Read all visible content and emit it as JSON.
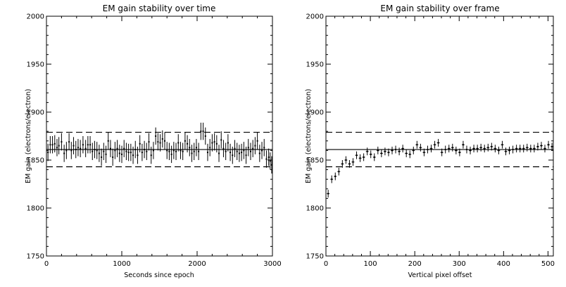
{
  "chart_data": [
    {
      "type": "scatter",
      "title": "EM gain stability over time",
      "xlabel": "Seconds since epoch",
      "ylabel": "EM gain (electrons/electron)",
      "xlim": [
        0,
        3000
      ],
      "ylim": [
        1750,
        2000
      ],
      "x_ticks": [
        "0",
        "1000",
        "2000",
        "3000"
      ],
      "y_ticks": [
        "1750",
        "1800",
        "1850",
        "1900",
        "1950",
        "2000"
      ],
      "reference_lines": {
        "mean": 1861,
        "upper": 1879,
        "lower": 1843
      },
      "series": [
        {
          "marker": "error bars",
          "x": [
            20,
            50,
            80,
            110,
            140,
            165,
            200,
            235,
            265,
            300,
            330,
            360,
            390,
            420,
            450,
            485,
            520,
            550,
            580,
            610,
            640,
            670,
            700,
            730,
            760,
            790,
            820,
            850,
            880,
            910,
            940,
            970,
            1000,
            1030,
            1060,
            1090,
            1120,
            1150,
            1180,
            1210,
            1240,
            1270,
            1300,
            1330,
            1360,
            1390,
            1420,
            1450,
            1480,
            1510,
            1540,
            1570,
            1600,
            1630,
            1660,
            1690,
            1720,
            1750,
            1780,
            1810,
            1840,
            1870,
            1900,
            1930,
            1960,
            1990,
            2020,
            2050,
            2080,
            2110,
            2140,
            2170,
            2200,
            2230,
            2260,
            2290,
            2320,
            2350,
            2380,
            2410,
            2440,
            2470,
            2500,
            2530,
            2560,
            2590,
            2620,
            2650,
            2680,
            2710,
            2740,
            2770,
            2800,
            2830,
            2860,
            2890,
            2920,
            2950,
            2970,
            2990
          ],
          "y": [
            1858,
            1866,
            1866,
            1867,
            1863,
            1865,
            1869,
            1857,
            1860,
            1869,
            1860,
            1865,
            1861,
            1863,
            1862,
            1866,
            1862,
            1866,
            1866,
            1859,
            1861,
            1860,
            1857,
            1853,
            1859,
            1856,
            1870,
            1862,
            1853,
            1860,
            1862,
            1857,
            1856,
            1862,
            1859,
            1858,
            1858,
            1855,
            1861,
            1855,
            1867,
            1858,
            1861,
            1859,
            1869,
            1855,
            1860,
            1875,
            1869,
            1868,
            1872,
            1870,
            1860,
            1859,
            1856,
            1860,
            1859,
            1868,
            1860,
            1859,
            1870,
            1867,
            1863,
            1857,
            1859,
            1863,
            1859,
            1880,
            1880,
            1875,
            1858,
            1863,
            1868,
            1869,
            1867,
            1857,
            1871,
            1862,
            1859,
            1868,
            1858,
            1855,
            1862,
            1859,
            1857,
            1858,
            1860,
            1855,
            1863,
            1859,
            1862,
            1865,
            1870,
            1857,
            1860,
            1863,
            1851,
            1853,
            1849,
            1845
          ],
          "yerr": [
            9,
            9,
            9,
            9,
            9,
            9,
            9,
            9,
            9,
            9,
            9,
            9,
            9,
            9,
            9,
            9,
            9,
            9,
            9,
            9,
            9,
            9,
            9,
            9,
            9,
            9,
            9,
            9,
            9,
            9,
            9,
            9,
            9,
            9,
            9,
            9,
            9,
            9,
            9,
            9,
            9,
            9,
            9,
            9,
            9,
            9,
            9,
            9,
            9,
            9,
            9,
            9,
            9,
            9,
            9,
            9,
            9,
            9,
            9,
            9,
            9,
            9,
            9,
            9,
            9,
            9,
            9,
            9,
            9,
            9,
            9,
            9,
            9,
            9,
            9,
            9,
            9,
            9,
            9,
            9,
            9,
            9,
            9,
            9,
            9,
            9,
            9,
            9,
            9,
            9,
            9,
            9,
            9,
            9,
            9,
            9,
            9,
            9,
            9,
            9
          ],
          "xerr": 2
        }
      ]
    },
    {
      "type": "scatter",
      "title": "EM gain stability over frame",
      "xlabel": "Vertical pixel offset",
      "ylabel": "EM gain (electrons/electron)",
      "xlim": [
        0,
        512
      ],
      "ylim": [
        1750,
        2000
      ],
      "x_ticks": [
        "0",
        "100",
        "200",
        "300",
        "400",
        "500"
      ],
      "y_ticks": [
        "1750",
        "1800",
        "1850",
        "1900",
        "1950",
        "2000"
      ],
      "reference_lines": {
        "mean": 1861,
        "upper": 1879,
        "lower": 1843
      },
      "series": [
        {
          "marker": "error bars",
          "x": [
            5,
            13,
            21,
            29,
            37,
            45,
            53,
            61,
            69,
            77,
            85,
            93,
            101,
            109,
            117,
            125,
            133,
            141,
            149,
            157,
            165,
            173,
            181,
            189,
            197,
            205,
            213,
            221,
            229,
            237,
            245,
            253,
            261,
            269,
            277,
            285,
            293,
            301,
            309,
            317,
            325,
            333,
            341,
            349,
            357,
            365,
            373,
            381,
            389,
            397,
            405,
            413,
            421,
            429,
            437,
            445,
            453,
            461,
            469,
            477,
            485,
            493,
            501,
            509
          ],
          "y": [
            1815,
            1830,
            1833,
            1838,
            1846,
            1850,
            1846,
            1848,
            1855,
            1852,
            1853,
            1859,
            1856,
            1853,
            1860,
            1857,
            1859,
            1858,
            1860,
            1861,
            1859,
            1862,
            1857,
            1856,
            1860,
            1866,
            1863,
            1858,
            1861,
            1862,
            1866,
            1868,
            1858,
            1861,
            1862,
            1863,
            1860,
            1858,
            1866,
            1861,
            1860,
            1862,
            1862,
            1863,
            1862,
            1863,
            1864,
            1862,
            1860,
            1866,
            1859,
            1860,
            1861,
            1862,
            1862,
            1862,
            1863,
            1862,
            1862,
            1864,
            1865,
            1862,
            1866,
            1864
          ],
          "yerr": [
            4,
            4,
            4,
            4,
            4,
            4,
            4,
            4,
            4,
            4,
            4,
            4,
            4,
            4,
            4,
            4,
            4,
            4,
            4,
            4,
            4,
            4,
            4,
            4,
            4,
            4,
            4,
            4,
            4,
            4,
            4,
            4,
            4,
            4,
            4,
            4,
            4,
            4,
            4,
            4,
            4,
            4,
            4,
            4,
            4,
            4,
            4,
            4,
            4,
            4,
            4,
            4,
            4,
            4,
            4,
            4,
            4,
            4,
            4,
            4,
            4,
            4,
            4,
            4
          ],
          "xerr": 3
        }
      ]
    }
  ]
}
